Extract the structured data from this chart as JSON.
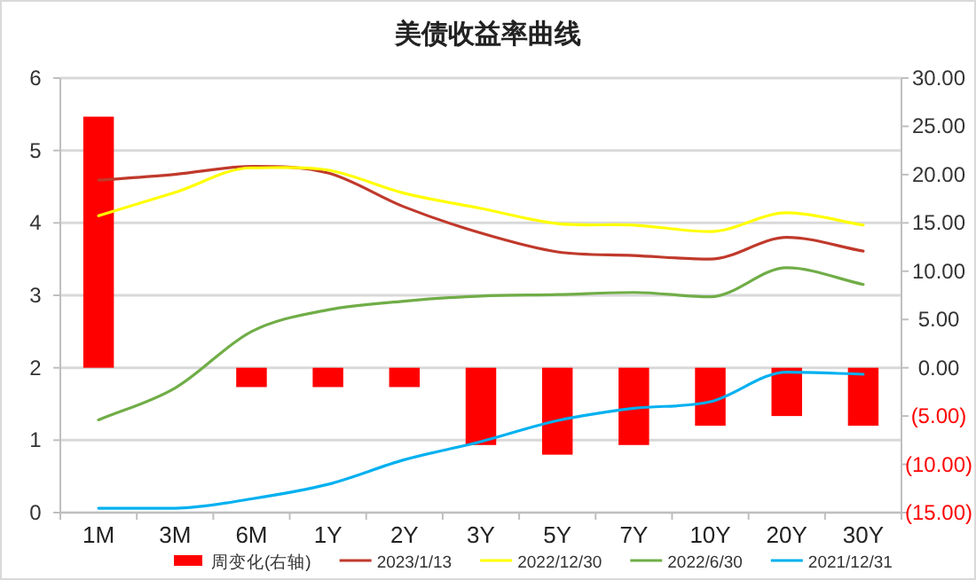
{
  "chart_data": {
    "type": "line",
    "title": "美债收益率曲线",
    "categories": [
      "1M",
      "3M",
      "6M",
      "1Y",
      "2Y",
      "3Y",
      "5Y",
      "7Y",
      "10Y",
      "20Y",
      "30Y"
    ],
    "series": [
      {
        "name": "周变化(右轴)",
        "type": "bar",
        "axis": "y2",
        "color": "#ff0000",
        "values": [
          26,
          null,
          -2,
          -2,
          -2,
          -8,
          -9,
          -8,
          -6,
          -5,
          -6
        ]
      },
      {
        "name": "2023/1/13",
        "color": "#c0392b",
        "values": [
          4.59,
          4.67,
          4.78,
          4.69,
          4.22,
          3.86,
          3.6,
          3.55,
          3.5,
          3.8,
          3.61
        ]
      },
      {
        "name": "2022/12/30",
        "color": "#ffff00",
        "values": [
          4.1,
          4.42,
          4.76,
          4.73,
          4.41,
          4.2,
          3.99,
          3.97,
          3.88,
          4.14,
          3.97
        ]
      },
      {
        "name": "2022/6/30",
        "color": "#70ad47",
        "values": [
          1.28,
          1.72,
          2.5,
          2.8,
          2.92,
          2.99,
          3.01,
          3.04,
          2.98,
          3.38,
          3.15
        ]
      },
      {
        "name": "2021/12/31",
        "color": "#00b0f0",
        "values": [
          0.06,
          0.06,
          0.19,
          0.39,
          0.73,
          0.98,
          1.27,
          1.44,
          1.53,
          1.94,
          1.91
        ]
      }
    ],
    "ylim": [
      0,
      6
    ],
    "yticks": [
      0,
      1,
      2,
      3,
      4,
      5,
      6
    ],
    "y2lim": [
      -15,
      30
    ],
    "y2ticks": [
      {
        "value": -15,
        "label": "(15.00)"
      },
      {
        "value": -10,
        "label": "(10.00)"
      },
      {
        "value": -5,
        "label": "(5.00)"
      },
      {
        "value": 0,
        "label": "0.00"
      },
      {
        "value": 5,
        "label": "5.00"
      },
      {
        "value": 10,
        "label": "10.00"
      },
      {
        "value": 15,
        "label": "15.00"
      },
      {
        "value": 20,
        "label": "20.00"
      },
      {
        "value": 25,
        "label": "25.00"
      },
      {
        "value": 30,
        "label": "30.00"
      }
    ],
    "grid": "y",
    "legend": "bottom"
  }
}
